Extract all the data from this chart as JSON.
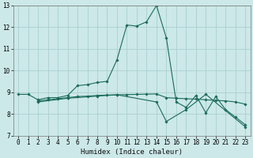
{
  "xlabel": "Humidex (Indice chaleur)",
  "bg_color": "#cce8e8",
  "grid_color": "#aacfcf",
  "line_color": "#1a6b5a",
  "xlim": [
    -0.5,
    23.5
  ],
  "ylim": [
    7,
    13
  ],
  "xticks": [
    0,
    1,
    2,
    3,
    4,
    5,
    6,
    7,
    8,
    9,
    10,
    11,
    12,
    13,
    14,
    15,
    16,
    17,
    18,
    19,
    20,
    21,
    22,
    23
  ],
  "yticks": [
    7,
    8,
    9,
    10,
    11,
    12,
    13
  ],
  "series1_x": [
    0,
    1,
    2,
    3,
    4,
    5,
    6,
    7,
    8,
    9,
    10,
    11,
    12,
    13,
    14,
    15,
    16,
    17,
    18,
    19,
    20,
    21,
    22,
    23
  ],
  "series1_y": [
    8.9,
    8.9,
    8.65,
    8.75,
    8.75,
    8.85,
    9.3,
    9.35,
    9.45,
    9.5,
    10.5,
    12.1,
    12.05,
    12.25,
    13.0,
    11.5,
    8.55,
    8.3,
    8.85,
    8.05,
    8.8,
    8.2,
    7.85,
    7.5
  ],
  "series2_x": [
    2,
    3,
    4,
    5,
    6,
    7,
    8,
    9,
    10,
    11,
    12,
    13,
    14,
    15,
    16,
    17,
    18,
    19,
    20,
    21,
    22,
    23
  ],
  "series2_y": [
    8.6,
    8.65,
    8.7,
    8.75,
    8.8,
    8.82,
    8.85,
    8.87,
    8.88,
    8.89,
    8.9,
    8.91,
    8.92,
    8.75,
    8.72,
    8.7,
    8.68,
    8.65,
    8.62,
    8.6,
    8.55,
    8.45
  ],
  "series3_x": [
    2,
    5,
    8,
    10,
    14,
    15,
    17,
    19,
    23
  ],
  "series3_y": [
    8.55,
    8.72,
    8.82,
    8.88,
    8.55,
    7.65,
    8.2,
    8.9,
    7.4
  ],
  "tick_fontsize": 5.5,
  "label_fontsize": 6.5
}
